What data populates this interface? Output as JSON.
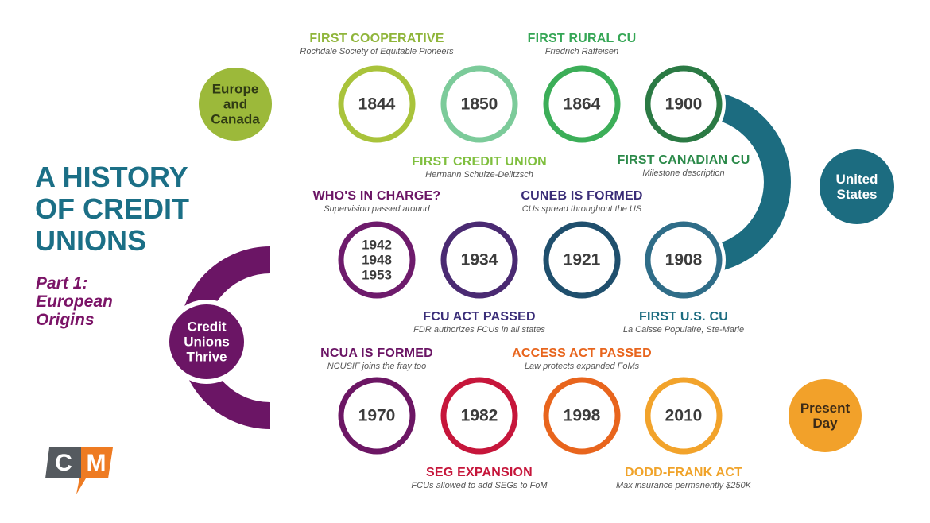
{
  "title_lines": [
    "A HISTORY",
    "OF CREDIT",
    "UNIONS"
  ],
  "subtitle_lines": [
    "Part 1:",
    "European",
    "Origins"
  ],
  "logo_text": "CM",
  "region_nodes": [
    {
      "id": "europe",
      "lines": [
        "Europe",
        "and",
        "Canada"
      ],
      "color": "#9cb93a"
    },
    {
      "id": "us",
      "lines": [
        "United",
        "States"
      ],
      "color": "#1c6c80"
    },
    {
      "id": "thrive",
      "lines": [
        "Credit",
        "Unions",
        "Thrive"
      ],
      "color": "#6b1565"
    },
    {
      "id": "present",
      "lines": [
        "Present",
        "Day"
      ],
      "color": "#f2a12a"
    }
  ],
  "year_nodes": [
    {
      "id": "y1844",
      "lines": [
        "1844"
      ],
      "color": "#a9c33b"
    },
    {
      "id": "y1850",
      "lines": [
        "1850"
      ],
      "color": "#7ccb9a"
    },
    {
      "id": "y1864",
      "lines": [
        "1864"
      ],
      "color": "#3cae58"
    },
    {
      "id": "y1900",
      "lines": [
        "1900"
      ],
      "color": "#2b7a44"
    },
    {
      "id": "y1908",
      "lines": [
        "1908"
      ],
      "color": "#2f6d88"
    },
    {
      "id": "y1921",
      "lines": [
        "1921"
      ],
      "color": "#1f4f6d"
    },
    {
      "id": "y1934",
      "lines": [
        "1934"
      ],
      "color": "#4a2a72"
    },
    {
      "id": "y1942",
      "lines": [
        "1942",
        "1948",
        "1953"
      ],
      "color": "#6e1b6c"
    },
    {
      "id": "y1970",
      "lines": [
        "1970"
      ],
      "color": "#6c1664"
    },
    {
      "id": "y1982",
      "lines": [
        "1982"
      ],
      "color": "#c6163b"
    },
    {
      "id": "y1998",
      "lines": [
        "1998"
      ],
      "color": "#e8651d"
    },
    {
      "id": "y2010",
      "lines": [
        "2010"
      ],
      "color": "#f2a32b"
    }
  ],
  "events": [
    {
      "id": "e1844",
      "title": "FIRST COOPERATIVE",
      "desc": "Rochdale Society of Equitable Pioneers",
      "color": "#8fb53a"
    },
    {
      "id": "e1850",
      "title": "FIRST CREDIT UNION",
      "desc": "Hermann Schulze-Delitzsch",
      "color": "#7fbf3e"
    },
    {
      "id": "e1864",
      "title": "FIRST RURAL CU",
      "desc": "Friedrich Raffeisen",
      "color": "#35a655"
    },
    {
      "id": "e1900",
      "title": "FIRST CANADIAN CU",
      "desc": "Milestone description",
      "color": "#2c8a4a"
    },
    {
      "id": "e1908",
      "title": "FIRST U.S. CU",
      "desc": "La Caisse Populaire, Ste-Marie",
      "color": "#1c6c80"
    },
    {
      "id": "e1921",
      "title": "CUNEB IS FORMED",
      "desc": "CUs spread throughout the US",
      "color": "#3a2d78"
    },
    {
      "id": "e1934",
      "title": "FCU ACT PASSED",
      "desc": "FDR authorizes FCUs in all states",
      "color": "#3a2d78"
    },
    {
      "id": "e1942",
      "title": "WHO'S IN CHARGE?",
      "desc": "Supervision passed around",
      "color": "#6b1565"
    },
    {
      "id": "e1970",
      "title": "NCUA IS FORMED",
      "desc": "NCUSIF joins the fray too",
      "color": "#6b1565"
    },
    {
      "id": "e1982",
      "title": "SEG EXPANSION",
      "desc": "FCUs allowed to add SEGs to FoM",
      "color": "#c6163b"
    },
    {
      "id": "e1998",
      "title": "ACCESS ACT PASSED",
      "desc": "Law protects expanded FoMs",
      "color": "#e8651d"
    },
    {
      "id": "e2010",
      "title": "DODD-FRANK ACT",
      "desc": "Max insurance permanently $250K",
      "color": "#f0a32a"
    }
  ]
}
